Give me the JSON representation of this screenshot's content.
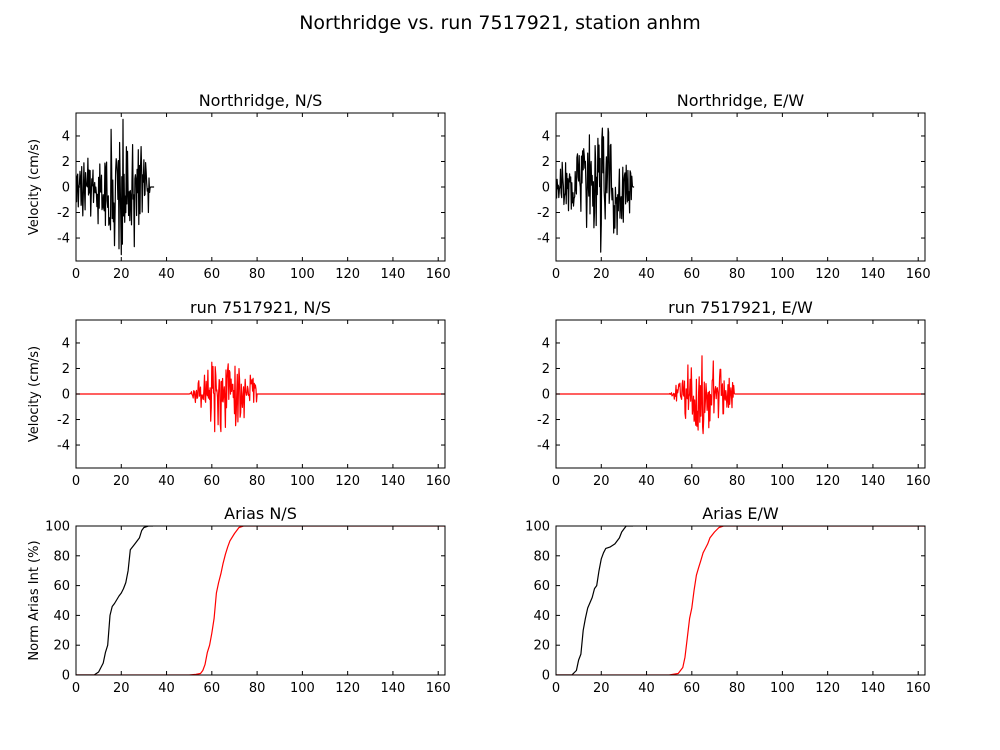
{
  "figure": {
    "suptitle": "Northridge vs. run 7517921, station anhm"
  },
  "colors": {
    "observed": "#000000",
    "simulated": "#ff0000",
    "axes": "#000000",
    "background": "#ffffff"
  },
  "chart_data": [
    {
      "id": "vel-obs-ns",
      "type": "line",
      "title": "Northridge, N/S",
      "ylabel": "Velocity (cm/s)",
      "xlim": [
        0,
        163
      ],
      "ylim": [
        -5.8,
        5.8
      ],
      "xticks": [
        0,
        20,
        40,
        60,
        80,
        100,
        120,
        140,
        160
      ],
      "yticks": [
        -4,
        -2,
        0,
        2,
        4
      ],
      "grid": false,
      "series": [
        {
          "color": "#000000",
          "kind": "wave",
          "t_start": 0,
          "t_end": 34.5,
          "peak": 5.3,
          "envelope": {
            "onset": 0,
            "rise_end": 8,
            "peak_t": 21,
            "decay_end": 33
          },
          "pre_amp": 0.4,
          "seed": 11
        }
      ]
    },
    {
      "id": "vel-obs-ew",
      "type": "line",
      "title": "Northridge, E/W",
      "ylabel": "",
      "xlim": [
        0,
        163
      ],
      "ylim": [
        -5.8,
        5.8
      ],
      "xticks": [
        0,
        20,
        40,
        60,
        80,
        100,
        120,
        140,
        160
      ],
      "yticks": [
        -4,
        -2,
        0,
        2,
        4
      ],
      "grid": false,
      "series": [
        {
          "color": "#000000",
          "kind": "wave",
          "t_start": 0,
          "t_end": 34.5,
          "peak": 5.1,
          "envelope": {
            "onset": 0,
            "rise_end": 8,
            "peak_t": 19,
            "decay_end": 34
          },
          "pre_amp": 0.35,
          "seed": 23
        }
      ]
    },
    {
      "id": "vel-sim-ns",
      "type": "line",
      "title": "run 7517921, N/S",
      "ylabel": "Velocity (cm/s)",
      "xlim": [
        0,
        163
      ],
      "ylim": [
        -5.8,
        5.8
      ],
      "xticks": [
        0,
        20,
        40,
        60,
        80,
        100,
        120,
        140,
        160
      ],
      "yticks": [
        -4,
        -2,
        0,
        2,
        4
      ],
      "grid": false,
      "series": [
        {
          "color": "#ff0000",
          "kind": "wave",
          "t_start": 0,
          "t_end": 163,
          "peak": 3.2,
          "envelope": {
            "onset": 50,
            "rise_end": 55,
            "peak_t": 62,
            "decay_end": 80
          },
          "pre_amp": 0.0,
          "seed": 37
        }
      ]
    },
    {
      "id": "vel-sim-ew",
      "type": "line",
      "title": "run 7517921, E/W",
      "ylabel": "",
      "xlim": [
        0,
        163
      ],
      "ylim": [
        -5.8,
        5.8
      ],
      "xticks": [
        0,
        20,
        40,
        60,
        80,
        100,
        120,
        140,
        160
      ],
      "yticks": [
        -4,
        -2,
        0,
        2,
        4
      ],
      "grid": false,
      "series": [
        {
          "color": "#ff0000",
          "kind": "wave",
          "t_start": 0,
          "t_end": 163,
          "peak": 3.1,
          "envelope": {
            "onset": 50,
            "rise_end": 55,
            "peak_t": 62,
            "decay_end": 79
          },
          "pre_amp": 0.0,
          "seed": 53
        }
      ]
    },
    {
      "id": "arias-ns",
      "type": "line",
      "title": "Arias N/S",
      "ylabel": "Norm Arias Int (%)",
      "xlim": [
        0,
        163
      ],
      "ylim": [
        0,
        100
      ],
      "xticks": [
        0,
        20,
        40,
        60,
        80,
        100,
        120,
        140,
        160
      ],
      "yticks": [
        0,
        20,
        40,
        60,
        80,
        100
      ],
      "grid": false,
      "series": [
        {
          "color": "#000000",
          "kind": "curve",
          "x": [
            0,
            8,
            10,
            12,
            13,
            14,
            15,
            16,
            17,
            19,
            20,
            21,
            22,
            23,
            24,
            26,
            28,
            29,
            30,
            32,
            34
          ],
          "y": [
            0,
            0,
            2,
            8,
            15,
            20,
            40,
            46,
            48,
            53,
            55,
            58,
            62,
            70,
            84,
            88,
            92,
            97,
            99,
            100,
            100
          ]
        },
        {
          "color": "#ff0000",
          "kind": "curve",
          "x": [
            0,
            50,
            53,
            55,
            56,
            57,
            58,
            59,
            60,
            61,
            62,
            63,
            64,
            65,
            66,
            67,
            68,
            70,
            72,
            74,
            76,
            163
          ],
          "y": [
            0,
            0,
            0.5,
            1,
            3,
            7,
            15,
            20,
            28,
            38,
            55,
            62,
            68,
            75,
            81,
            86,
            90,
            95,
            99,
            100,
            100,
            100
          ]
        }
      ]
    },
    {
      "id": "arias-ew",
      "type": "line",
      "title": "Arias E/W",
      "ylabel": "",
      "xlim": [
        0,
        163
      ],
      "ylim": [
        0,
        100
      ],
      "xticks": [
        0,
        20,
        40,
        60,
        80,
        100,
        120,
        140,
        160
      ],
      "yticks": [
        0,
        20,
        40,
        60,
        80,
        100
      ],
      "grid": false,
      "series": [
        {
          "color": "#000000",
          "kind": "curve",
          "x": [
            0,
            7,
            9,
            10,
            11,
            12,
            13,
            14,
            16,
            17,
            18,
            19,
            20,
            21,
            22,
            24,
            26,
            28,
            29,
            30,
            31,
            33,
            34
          ],
          "y": [
            0,
            0,
            3,
            10,
            14,
            30,
            38,
            45,
            52,
            58,
            60,
            70,
            78,
            82,
            85,
            86,
            88,
            92,
            96,
            98,
            100,
            100,
            100
          ]
        },
        {
          "color": "#ff0000",
          "kind": "curve",
          "x": [
            0,
            50,
            54,
            56,
            57,
            58,
            59,
            60,
            61,
            62,
            63,
            64,
            65,
            66,
            67,
            68,
            70,
            72,
            74,
            76,
            163
          ],
          "y": [
            0,
            0,
            1,
            5,
            12,
            25,
            38,
            45,
            57,
            67,
            72,
            77,
            82,
            85,
            88,
            92,
            96,
            99,
            100,
            100,
            100
          ]
        }
      ]
    }
  ]
}
